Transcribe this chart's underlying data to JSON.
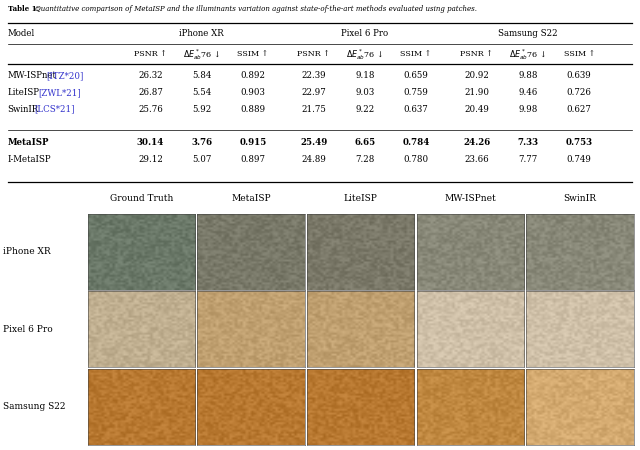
{
  "title": "Table 1: ",
  "title_italic": "Quantitative comparison of MetaISP and the illuminants variation against state-of-the-art methods evaluated using patches.",
  "table_rows": [
    [
      "MW-ISPnet",
      "ITZ*20",
      "26.32",
      "5.84",
      "0.892",
      "22.39",
      "9.18",
      "0.659",
      "20.92",
      "9.88",
      "0.639"
    ],
    [
      "LiteISP",
      "ZWL*21",
      "26.87",
      "5.54",
      "0.903",
      "22.97",
      "9.03",
      "0.759",
      "21.90",
      "9.46",
      "0.726"
    ],
    [
      "SwinIR",
      "LCS*21",
      "25.76",
      "5.92",
      "0.889",
      "21.75",
      "9.22",
      "0.637",
      "20.49",
      "9.98",
      "0.627"
    ],
    [
      "MetaISP",
      "",
      "30.14",
      "3.76",
      "0.915",
      "25.49",
      "6.65",
      "0.784",
      "24.26",
      "7.33",
      "0.753"
    ],
    [
      "I-MetaISP",
      "",
      "29.12",
      "5.07",
      "0.897",
      "24.89",
      "7.28",
      "0.780",
      "23.66",
      "7.77",
      "0.749"
    ]
  ],
  "bold_row": 3,
  "col_headers": [
    "Ground Truth",
    "MetaISP",
    "LiteISP",
    "MW-ISPnet",
    "SwinIR"
  ],
  "row_labels": [
    "iPhone XR",
    "Pixel 6 Pro",
    "Samsung S22"
  ],
  "img_colors_row0": [
    "#6a7868",
    "#787868",
    "#7a7868",
    "#888878",
    "#888878"
  ],
  "img_colors_row1": [
    "#c0af90",
    "#c0a070",
    "#c0a070",
    "#cfc0a8",
    "#cfc0a8"
  ],
  "img_colors_row2": [
    "#b87830",
    "#b87830",
    "#b87830",
    "#c08840",
    "#d4aa70"
  ],
  "bg_color": "#ffffff",
  "cite_color": "#3333cc"
}
